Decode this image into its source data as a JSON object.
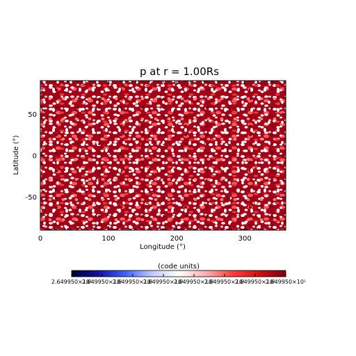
{
  "chart_data": {
    "type": "heatmap",
    "title": "p at r = 1.00Rs",
    "xlabel": "Longitude (°)",
    "ylabel": "Latitude (°)",
    "xlim": [
      0,
      360
    ],
    "ylim": [
      -90,
      90
    ],
    "x_ticks": [
      0,
      100,
      200,
      300
    ],
    "x_tick_labels": [
      "0",
      "100",
      "200",
      "300"
    ],
    "y_ticks": [
      -50,
      0,
      50
    ],
    "y_tick_labels": [
      "-50",
      "0",
      "50"
    ],
    "pattern": "noisy speckle, dominated by dark red and light red with scattered white",
    "colors": {
      "dark_red": "#a00018",
      "red": "#d03030",
      "light": "#ffe8e8",
      "white": "#ffffff"
    },
    "colorbar": {
      "label": "(code units)",
      "tick_labels": [
        "2.649950×10¹",
        "2.649950×10¹",
        "2.649950×10¹",
        "2.649950×10¹",
        "2.649950×10¹",
        "2.649950×10¹",
        "2.649950×10¹",
        "2.649950×10¹"
      ],
      "colormap": [
        "#000030",
        "#1010a0",
        "#4060ff",
        "#c0c8ff",
        "#ffffff",
        "#ffb0b0",
        "#ff4040",
        "#d01010",
        "#7a0010"
      ]
    }
  }
}
